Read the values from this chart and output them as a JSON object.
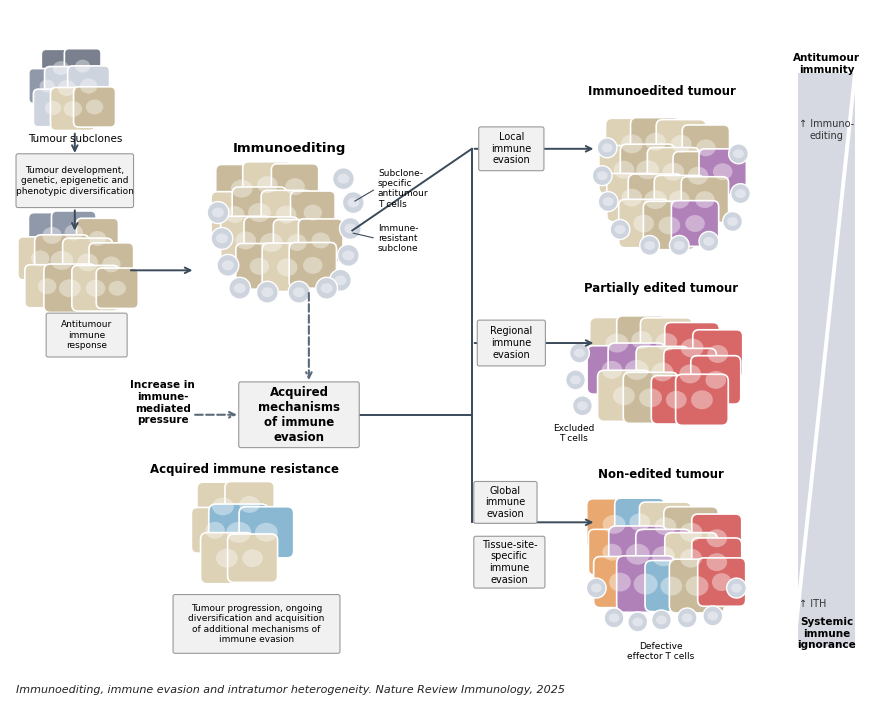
{
  "caption": "Immunoediting, immune evasion and intratumor heterogeneity. Nature Review Immunology, 2025",
  "bg_color": "#ffffff",
  "colors": {
    "tan": "#c9ba9b",
    "tan_light": "#ddd1b6",
    "dark_gray": "#7a808e",
    "medium_gray": "#9099aa",
    "light_gray": "#b8c0cc",
    "very_light_gray": "#ced4de",
    "purple": "#b080b8",
    "red": "#d86868",
    "blue_light": "#8ab8d2",
    "orange": "#e8a870",
    "arrow": "#3a4a5a",
    "box_bg": "#f2f1f2",
    "box_border": "#999999",
    "tri_gray": "#c0c5d3",
    "dashed": "#6070808"
  },
  "texts": {
    "tumour_subclones": "Tumour subclones",
    "tumour_dev": "Tumour development,\ngenetic, epigenetic and\nphenotypic diversification",
    "antitumour_resp": "Antitumour\nimmune\nresponse",
    "immunoediting": "Immunoediting",
    "subclone_specific": "Subclone-\nspecific\nantitumour\nT cells",
    "immune_resistant": "Immune-\nresistant\nsubclone",
    "increase_pressure": "Increase in\nimmune-\nmediated\npressure",
    "acquired_mech": "Acquired\nmechanisms\nof immune\nevasion",
    "acquired_resistance": "Acquired immune resistance",
    "tumour_progression": "Tumour progression, ongoing\ndiversification and acquisition\nof additional mechanisms of\nimmune evasion",
    "immunoedited": "Immunoedited tumour",
    "local_evasion": "Local\nimmune\nevasion",
    "partially_edited": "Partially edited tumour",
    "regional_evasion": "Regional\nimmune\nevasion",
    "excluded_t": "Excluded\nT cells",
    "non_edited": "Non-edited tumour",
    "global_evasion": "Global\nimmune\nevasion",
    "tissue_specific": "Tissue-site-\nspecific\nimmune\nevasion",
    "defective_t": "Defective\neffector T cells",
    "antitumour_immunity": "Antitumour\nimmunity",
    "immunoediting_label": "↑ Immuno-\nediting",
    "ith_label": "↑ ITH",
    "systemic_immune": "Systemic\nimmune\nignorance"
  }
}
